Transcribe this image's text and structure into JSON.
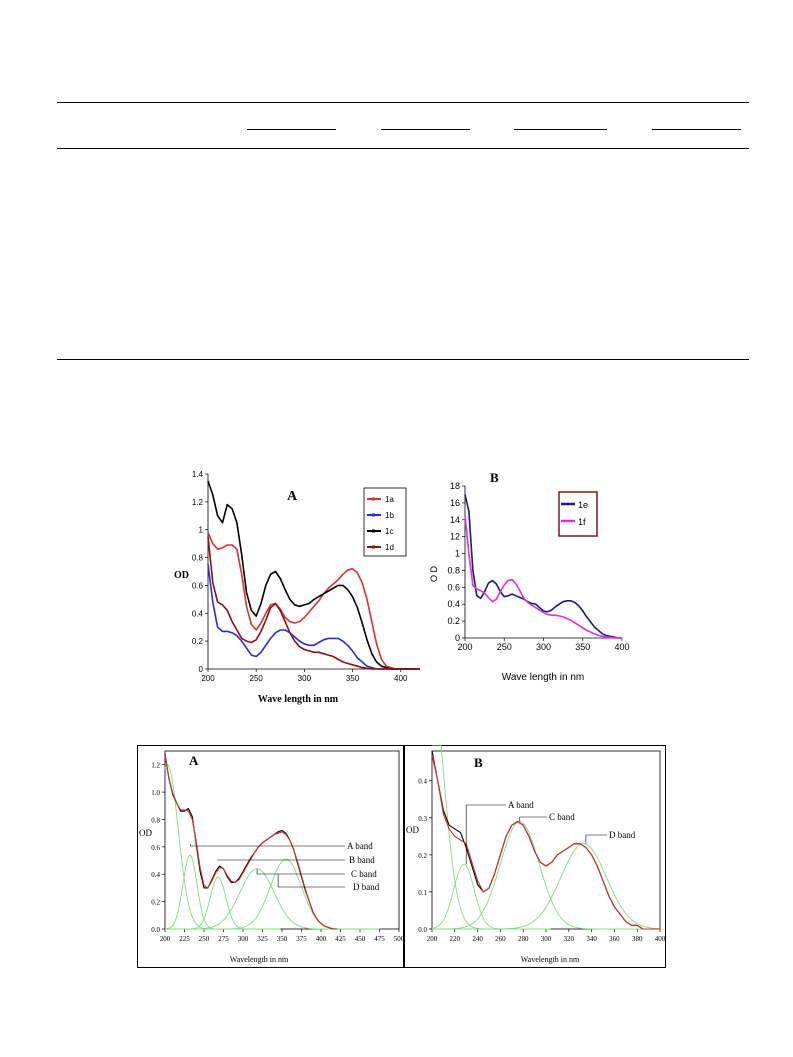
{
  "table": {
    "headers": [],
    "rows": []
  },
  "chart_data": [
    {
      "type": "line",
      "panel_label": "A",
      "xlabel": "Wave length in nm",
      "ylabel": "OD",
      "xlim": [
        200,
        420
      ],
      "ylim": [
        0,
        1.4
      ],
      "xticks": [
        200,
        250,
        300,
        350,
        400
      ],
      "yticks": [
        0,
        0.2,
        0.4,
        0.6,
        0.8,
        1,
        1.2,
        1.4
      ],
      "grid": false,
      "legend_position": "top-right",
      "series": [
        {
          "name": "1a",
          "color": "#e03030",
          "x": [
            200,
            205,
            210,
            215,
            220,
            225,
            230,
            235,
            240,
            245,
            250,
            255,
            260,
            265,
            270,
            275,
            280,
            285,
            290,
            295,
            300,
            305,
            310,
            315,
            320,
            325,
            330,
            335,
            340,
            345,
            350,
            355,
            360,
            365,
            370,
            375,
            380,
            385,
            390,
            395,
            400,
            410,
            420
          ],
          "y": [
            0.98,
            0.9,
            0.86,
            0.87,
            0.89,
            0.89,
            0.86,
            0.68,
            0.45,
            0.32,
            0.28,
            0.33,
            0.4,
            0.46,
            0.47,
            0.43,
            0.37,
            0.34,
            0.33,
            0.34,
            0.37,
            0.41,
            0.45,
            0.49,
            0.54,
            0.58,
            0.61,
            0.64,
            0.68,
            0.71,
            0.72,
            0.69,
            0.62,
            0.5,
            0.34,
            0.18,
            0.07,
            0.02,
            0.01,
            0,
            0,
            0,
            0
          ]
        },
        {
          "name": "1b",
          "color": "#2a2ae0",
          "x": [
            200,
            205,
            210,
            215,
            220,
            225,
            230,
            235,
            240,
            245,
            250,
            255,
            260,
            265,
            270,
            275,
            280,
            285,
            290,
            295,
            300,
            305,
            310,
            315,
            320,
            325,
            330,
            335,
            340,
            345,
            350,
            355,
            360,
            365,
            370,
            375,
            380,
            390,
            400,
            420
          ],
          "y": [
            0.75,
            0.48,
            0.3,
            0.27,
            0.27,
            0.26,
            0.24,
            0.2,
            0.15,
            0.1,
            0.09,
            0.12,
            0.17,
            0.22,
            0.26,
            0.28,
            0.28,
            0.26,
            0.23,
            0.2,
            0.18,
            0.17,
            0.17,
            0.19,
            0.21,
            0.22,
            0.22,
            0.22,
            0.2,
            0.17,
            0.13,
            0.08,
            0.05,
            0.02,
            0.01,
            0,
            0,
            0,
            0,
            0
          ]
        },
        {
          "name": "1c",
          "color": "#000000",
          "x": [
            200,
            205,
            210,
            215,
            220,
            225,
            230,
            235,
            240,
            245,
            250,
            255,
            260,
            265,
            270,
            275,
            280,
            285,
            290,
            295,
            300,
            305,
            310,
            315,
            320,
            325,
            330,
            335,
            340,
            345,
            350,
            355,
            360,
            365,
            370,
            375,
            380,
            385,
            390,
            395,
            400,
            410,
            420
          ],
          "y": [
            1.35,
            1.25,
            1.1,
            1.05,
            1.18,
            1.15,
            1.05,
            0.82,
            0.55,
            0.42,
            0.38,
            0.47,
            0.6,
            0.68,
            0.7,
            0.65,
            0.57,
            0.5,
            0.46,
            0.45,
            0.46,
            0.47,
            0.5,
            0.52,
            0.54,
            0.56,
            0.58,
            0.6,
            0.6,
            0.57,
            0.52,
            0.44,
            0.33,
            0.21,
            0.11,
            0.05,
            0.02,
            0.01,
            0,
            0,
            0,
            0,
            0
          ]
        },
        {
          "name": "1d",
          "color": "#8b1010",
          "x": [
            200,
            205,
            210,
            215,
            220,
            225,
            230,
            235,
            240,
            245,
            250,
            255,
            260,
            265,
            270,
            275,
            280,
            285,
            290,
            295,
            300,
            305,
            310,
            315,
            320,
            325,
            330,
            335,
            340,
            345,
            350,
            355,
            360,
            370,
            380,
            400,
            420
          ],
          "y": [
            0.95,
            0.62,
            0.48,
            0.46,
            0.42,
            0.34,
            0.28,
            0.22,
            0.2,
            0.19,
            0.21,
            0.27,
            0.35,
            0.44,
            0.47,
            0.42,
            0.34,
            0.26,
            0.2,
            0.16,
            0.14,
            0.13,
            0.12,
            0.12,
            0.11,
            0.1,
            0.09,
            0.07,
            0.05,
            0.04,
            0.03,
            0.02,
            0.01,
            0,
            0,
            0,
            0
          ]
        }
      ]
    },
    {
      "type": "line",
      "panel_label": "B",
      "xlabel": "Wave length in nm",
      "ylabel": "O D",
      "xlim": [
        200,
        400
      ],
      "ylim": [
        0,
        18
      ],
      "xticks": [
        200,
        250,
        300,
        350,
        400
      ],
      "yticks": [
        0,
        0.2,
        0.4,
        0.6,
        0.8,
        1,
        12,
        14,
        16,
        18
      ],
      "yticklabels": [
        "0",
        "0.2",
        "0.4",
        "0.6",
        "0.8",
        "1",
        "12",
        "14",
        "16",
        "18"
      ],
      "grid": false,
      "legend_position": "top-right",
      "series": [
        {
          "name": "1e",
          "color": "#1c1c78",
          "x": [
            200,
            205,
            210,
            215,
            220,
            225,
            230,
            235,
            240,
            245,
            250,
            255,
            260,
            265,
            270,
            275,
            280,
            285,
            290,
            295,
            300,
            305,
            310,
            315,
            320,
            325,
            330,
            335,
            340,
            345,
            350,
            355,
            360,
            365,
            370,
            375,
            380,
            385,
            390,
            395,
            400
          ],
          "y": [
            1.7,
            1.5,
            0.8,
            0.5,
            0.47,
            0.55,
            0.65,
            0.68,
            0.64,
            0.55,
            0.49,
            0.5,
            0.52,
            0.5,
            0.48,
            0.46,
            0.43,
            0.41,
            0.4,
            0.36,
            0.32,
            0.31,
            0.33,
            0.37,
            0.4,
            0.43,
            0.44,
            0.44,
            0.42,
            0.38,
            0.32,
            0.25,
            0.19,
            0.13,
            0.09,
            0.05,
            0.03,
            0.02,
            0.01,
            0,
            0
          ]
        },
        {
          "name": "1f",
          "color": "#e22de6",
          "x": [
            200,
            205,
            210,
            215,
            220,
            225,
            230,
            235,
            240,
            245,
            250,
            255,
            260,
            265,
            270,
            275,
            280,
            285,
            290,
            295,
            300,
            305,
            310,
            315,
            320,
            325,
            330,
            335,
            340,
            345,
            350,
            355,
            360,
            365,
            370,
            375,
            380,
            385,
            390,
            395,
            400
          ],
          "y": [
            1.45,
            1.0,
            0.62,
            0.58,
            0.56,
            0.53,
            0.48,
            0.43,
            0.46,
            0.55,
            0.63,
            0.68,
            0.69,
            0.64,
            0.56,
            0.47,
            0.42,
            0.39,
            0.36,
            0.33,
            0.3,
            0.28,
            0.27,
            0.27,
            0.26,
            0.25,
            0.23,
            0.21,
            0.18,
            0.15,
            0.12,
            0.09,
            0.07,
            0.05,
            0.03,
            0.02,
            0.01,
            0.01,
            0,
            0,
            0
          ]
        }
      ]
    },
    {
      "type": "line",
      "panel_label": "A",
      "xlabel": "Wavelength in nm",
      "ylabel": "OD",
      "xlim": [
        200,
        500
      ],
      "ylim": [
        0,
        1.3
      ],
      "xticks": [
        200,
        225,
        250,
        275,
        300,
        325,
        350,
        375,
        400,
        425,
        450,
        475,
        500
      ],
      "xticklabels": [
        "200",
        "225",
        "250",
        "275",
        "300",
        "325",
        "350",
        "375",
        "400",
        "425",
        "450",
        "475",
        "500"
      ],
      "yticks": [
        0,
        0.2,
        0.4,
        0.6,
        0.8,
        1.0,
        1.2
      ],
      "yticklabels": [
        "0.0",
        "0.2",
        "0.4",
        "0.6",
        "0.8",
        "1.0",
        "1.2"
      ],
      "grid": false,
      "annotations": [
        "A band",
        "B band",
        "C band",
        "D band"
      ],
      "series": [
        {
          "color": "#000000",
          "x": [
            200,
            205,
            210,
            215,
            220,
            225,
            230,
            235,
            240,
            245,
            250,
            255,
            260,
            265,
            270,
            275,
            280,
            285,
            290,
            295,
            300,
            305,
            310,
            315,
            320,
            325,
            330,
            335,
            340,
            345,
            350,
            355,
            360,
            365,
            370,
            375,
            380,
            385,
            390,
            395,
            400,
            405,
            410,
            415,
            420
          ],
          "y": [
            1.28,
            1.1,
            0.98,
            0.92,
            0.86,
            0.86,
            0.88,
            0.82,
            0.62,
            0.42,
            0.3,
            0.3,
            0.36,
            0.42,
            0.46,
            0.44,
            0.38,
            0.34,
            0.34,
            0.37,
            0.42,
            0.47,
            0.52,
            0.56,
            0.6,
            0.63,
            0.65,
            0.67,
            0.69,
            0.71,
            0.72,
            0.7,
            0.65,
            0.58,
            0.48,
            0.38,
            0.28,
            0.2,
            0.12,
            0.07,
            0.04,
            0.02,
            0.01,
            0,
            0
          ]
        },
        {
          "color": "#d03030",
          "x": [
            200,
            205,
            210,
            215,
            220,
            225,
            230,
            235,
            240,
            245,
            250,
            255,
            260,
            265,
            270,
            275,
            280,
            285,
            290,
            295,
            300,
            305,
            310,
            315,
            320,
            325,
            330,
            335,
            340,
            345,
            350,
            355,
            360,
            365,
            370,
            375,
            380,
            385,
            390,
            395,
            400,
            405,
            410,
            415,
            420
          ],
          "y": [
            1.27,
            1.1,
            0.99,
            0.92,
            0.87,
            0.87,
            0.86,
            0.8,
            0.64,
            0.45,
            0.32,
            0.3,
            0.35,
            0.41,
            0.45,
            0.44,
            0.39,
            0.35,
            0.34,
            0.36,
            0.41,
            0.46,
            0.51,
            0.56,
            0.6,
            0.63,
            0.65,
            0.67,
            0.69,
            0.7,
            0.71,
            0.69,
            0.65,
            0.58,
            0.49,
            0.39,
            0.29,
            0.2,
            0.12,
            0.07,
            0.04,
            0.02,
            0.01,
            0,
            0
          ]
        }
      ],
      "bands": [
        {
          "center": 203,
          "amp": 1.2,
          "sigma": 14
        },
        {
          "center": 232,
          "amp": 0.54,
          "sigma": 9
        },
        {
          "center": 268,
          "amp": 0.38,
          "sigma": 10
        },
        {
          "center": 318,
          "amp": 0.44,
          "sigma": 22
        },
        {
          "center": 355,
          "amp": 0.51,
          "sigma": 20
        }
      ],
      "band_color": "#7ce07c"
    },
    {
      "type": "line",
      "panel_label": "B",
      "xlabel": "Wavelength in nm",
      "ylabel": "OD",
      "xlim": [
        200,
        400
      ],
      "ylim": [
        0,
        0.48
      ],
      "xticks": [
        200,
        220,
        240,
        260,
        280,
        300,
        320,
        340,
        360,
        380,
        400
      ],
      "xticklabels": [
        "200",
        "220",
        "240",
        "260",
        "280",
        "300",
        "320",
        "340",
        "360",
        "380",
        "400"
      ],
      "yticks": [
        0,
        0.1,
        0.2,
        0.3,
        0.4
      ],
      "yticklabels": [
        "0.0",
        "0.1",
        "0.2",
        "0.3",
        "0.4"
      ],
      "grid": false,
      "annotations": [
        "A band",
        "C band",
        "D band"
      ],
      "series": [
        {
          "color": "#000000",
          "x": [
            200,
            205,
            210,
            215,
            220,
            225,
            230,
            235,
            240,
            245,
            250,
            255,
            260,
            265,
            270,
            275,
            280,
            285,
            290,
            295,
            300,
            305,
            310,
            315,
            320,
            325,
            330,
            335,
            340,
            345,
            350,
            355,
            360,
            365,
            370,
            375,
            380,
            385,
            390,
            395,
            400
          ],
          "y": [
            0.48,
            0.4,
            0.32,
            0.28,
            0.27,
            0.26,
            0.22,
            0.17,
            0.12,
            0.1,
            0.11,
            0.15,
            0.2,
            0.25,
            0.28,
            0.29,
            0.28,
            0.25,
            0.21,
            0.18,
            0.17,
            0.18,
            0.2,
            0.21,
            0.22,
            0.23,
            0.23,
            0.22,
            0.2,
            0.17,
            0.13,
            0.09,
            0.06,
            0.04,
            0.02,
            0.01,
            0.01,
            0,
            0,
            0,
            0
          ]
        },
        {
          "color": "#d03030",
          "x": [
            200,
            205,
            210,
            215,
            220,
            225,
            230,
            235,
            240,
            245,
            250,
            255,
            260,
            265,
            270,
            275,
            280,
            285,
            290,
            295,
            300,
            305,
            310,
            315,
            320,
            325,
            330,
            335,
            340,
            345,
            350,
            355,
            360,
            365,
            370,
            375,
            380,
            385,
            390,
            395,
            400
          ],
          "y": [
            0.47,
            0.4,
            0.31,
            0.27,
            0.25,
            0.24,
            0.23,
            0.18,
            0.13,
            0.1,
            0.11,
            0.15,
            0.2,
            0.25,
            0.28,
            0.29,
            0.28,
            0.25,
            0.21,
            0.18,
            0.17,
            0.18,
            0.2,
            0.21,
            0.22,
            0.23,
            0.23,
            0.22,
            0.2,
            0.17,
            0.13,
            0.09,
            0.06,
            0.04,
            0.02,
            0.01,
            0.01,
            0,
            0,
            0,
            0
          ]
        }
      ],
      "bands": [
        {
          "center": 198,
          "amp": 0.7,
          "sigma": 12
        },
        {
          "center": 228,
          "amp": 0.175,
          "sigma": 9
        },
        {
          "center": 277,
          "amp": 0.29,
          "sigma": 17
        },
        {
          "center": 333,
          "amp": 0.23,
          "sigma": 20
        }
      ],
      "band_color": "#7ce07c"
    }
  ]
}
